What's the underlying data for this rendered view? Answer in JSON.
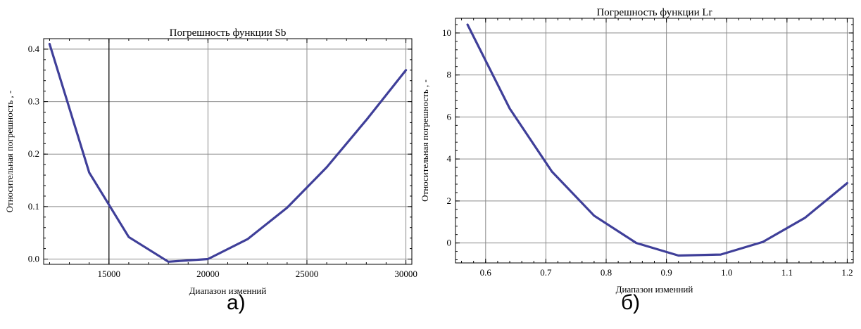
{
  "chart_data": [
    {
      "type": "line",
      "title": "Погрешность функции Sb",
      "xlabel": "Диапазон   изменний",
      "ylabel": "Относительная погрешность ,  -",
      "xlim": [
        11700,
        30300
      ],
      "ylim": [
        -0.01,
        0.42
      ],
      "xticks": [
        15000,
        20000,
        25000,
        30000
      ],
      "xtick_labels": [
        "15000",
        "20000",
        "25000",
        "30000"
      ],
      "yticks": [
        0.0,
        0.1,
        0.2,
        0.3,
        0.4
      ],
      "ytick_labels": [
        "0.0",
        "0.1",
        "0.2",
        "0.3",
        "0.4"
      ],
      "vertical_line_x": 15000,
      "grid": true,
      "series": [
        {
          "color": "#3f3f99",
          "x": [
            12000,
            14000,
            16000,
            18000,
            20000,
            22000,
            24000,
            26000,
            28000,
            30000
          ],
          "y": [
            0.41,
            0.165,
            0.042,
            -0.005,
            0.0,
            0.038,
            0.098,
            0.175,
            0.265,
            0.36
          ]
        }
      ],
      "caption": "а)"
    },
    {
      "type": "line",
      "title": "Погрешность функции Lr",
      "xlabel": "Диапазон   изменний",
      "ylabel": "Относительная погрешность ,  -",
      "xlim": [
        0.55,
        1.21
      ],
      "ylim": [
        -0.95,
        10.7
      ],
      "xticks": [
        0.6,
        0.7,
        0.8,
        0.9,
        1.0,
        1.1,
        1.2
      ],
      "xtick_labels": [
        "0.6",
        "0.7",
        "0.8",
        "0.9",
        "1.0",
        "1.1",
        "1.2"
      ],
      "yticks": [
        0,
        2,
        4,
        6,
        8,
        10
      ],
      "ytick_labels": [
        "0",
        "2",
        "4",
        "6",
        "8",
        "10"
      ],
      "grid": true,
      "series": [
        {
          "color": "#3f3f99",
          "x": [
            0.57,
            0.64,
            0.71,
            0.78,
            0.85,
            0.92,
            0.99,
            1.06,
            1.13,
            1.2
          ],
          "y": [
            10.4,
            6.4,
            3.4,
            1.3,
            0.0,
            -0.6,
            -0.55,
            0.05,
            1.2,
            2.85
          ]
        }
      ],
      "caption": "б)"
    }
  ]
}
